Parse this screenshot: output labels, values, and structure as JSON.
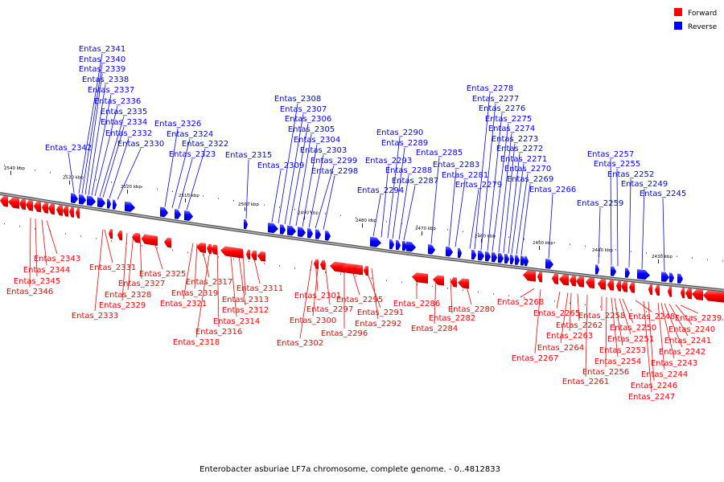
{
  "legend": [
    {
      "label": "Forward",
      "color": "#ff0000"
    },
    {
      "label": "Reverse",
      "color": "#0000ff"
    }
  ],
  "caption": "Enterobacter asburiae LF7a chromosome, complete genome. - 0..4812833",
  "colors": {
    "forward": "#ff0000",
    "reverse": "#0000ff",
    "backbone": "#888888"
  },
  "ticks": [
    "2540 kbp",
    "2530 kbp",
    "2520 kbp",
    "2510 kbp",
    "2500 kbp",
    "2490 kbp",
    "2480 kbp",
    "2470 kbp",
    "2460 kbp",
    "2450 kbp",
    "2440 kbp",
    "2430 kbp"
  ],
  "reverse_genes": [
    "Entas_2342",
    "Entas_2341",
    "Entas_2340",
    "Entas_2339",
    "Entas_2338",
    "Entas_2337",
    "Entas_2336",
    "Entas_2335",
    "Entas_2334",
    "Entas_2332",
    "Entas_2330",
    "Entas_2326",
    "Entas_2324",
    "Entas_2322",
    "Entas_2323",
    "Entas_2315",
    "Entas_2309",
    "Entas_2308",
    "Entas_2307",
    "Entas_2306",
    "Entas_2305",
    "Entas_2304",
    "Entas_2303",
    "Entas_2299",
    "Entas_2298",
    "Entas_2294",
    "Entas_2293",
    "Entas_2290",
    "Entas_2289",
    "Entas_2288",
    "Entas_2287",
    "Entas_2285",
    "Entas_2283",
    "Entas_2281",
    "Entas_2279",
    "Entas_2278",
    "Entas_2277",
    "Entas_2276",
    "Entas_2275",
    "Entas_2274",
    "Entas_2273",
    "Entas_2272",
    "Entas_2271",
    "Entas_2270",
    "Entas_2269",
    "Entas_2266",
    "Entas_2259",
    "Entas_2257",
    "Entas_2255",
    "Entas_2252",
    "Entas_2249",
    "Entas_2245"
  ],
  "forward_genes": [
    "Entas_2343",
    "Entas_2344",
    "Entas_2345",
    "Entas_2346",
    "Entas_2331",
    "Entas_2333",
    "Entas_2325",
    "Entas_2327",
    "Entas_2328",
    "Entas_2329",
    "Entas_2317",
    "Entas_2319",
    "Entas_2321",
    "Entas_2318",
    "Entas_2316",
    "Entas_2314",
    "Entas_2313",
    "Entas_2312",
    "Entas_2311",
    "Entas_2301",
    "Entas_2297",
    "Entas_2300",
    "Entas_2302",
    "Entas_2296",
    "Entas_2295",
    "Entas_2291",
    "Entas_2292",
    "Entas_2286",
    "Entas_2284",
    "Entas_2282",
    "Entas_2280",
    "Entas_2268",
    "Entas_2267",
    "Entas_2265",
    "Entas_2264",
    "Entas_2263",
    "Entas_2262",
    "Entas_2261",
    "Entas_2258",
    "Entas_2256",
    "Entas_2254",
    "Entas_2253",
    "Entas_2251",
    "Entas_2250",
    "Entas_2248",
    "Entas_2247",
    "Entas_2246",
    "Entas_2244",
    "Entas_2243",
    "Entas_2242",
    "Entas_2241",
    "Entas_2240",
    "Entas_2239"
  ]
}
